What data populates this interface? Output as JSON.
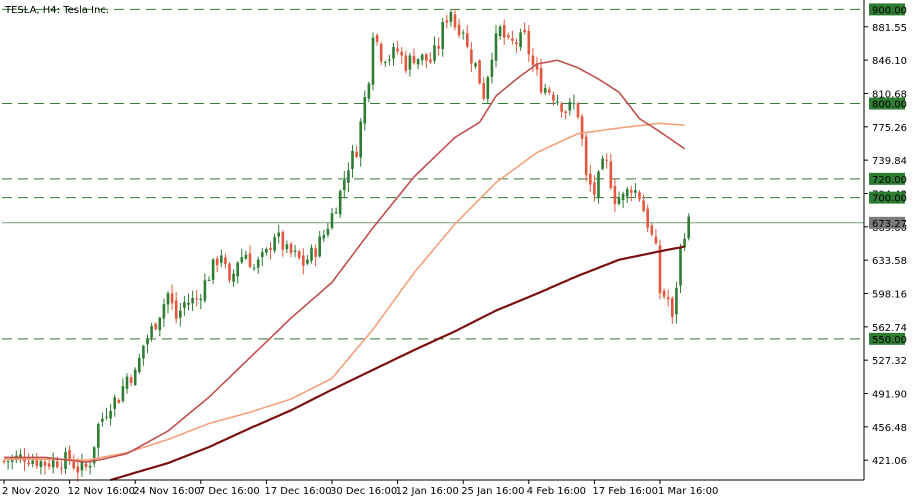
{
  "title": "TESLA, H4:  Tesla Inc.",
  "colors": {
    "background": "#ffffff",
    "bull": "#2e7d32",
    "bear": "#e4573f",
    "level_line": "#2e7d32",
    "sma_fast": "#c0504d",
    "sma_mid": "#f4a07a",
    "sma_slow": "#7b1010",
    "current_price_line": "#7a9a7a",
    "level_tag_bg": "#2e7d32",
    "level_tag_text": "#ffffff",
    "current_tag_bg": "#7a7a7a"
  },
  "chart_data": {
    "type": "candlestick",
    "symbol": "TESLA",
    "timeframe": "H4",
    "ylim": [
      400,
      910
    ],
    "y_ticks": [
      "881.55",
      "846.10",
      "810.68",
      "775.26",
      "739.84",
      "704.42",
      "669.00",
      "633.58",
      "598.16",
      "562.74",
      "527.32",
      "491.90",
      "456.48",
      "421.06"
    ],
    "x_ticks": [
      "2 Nov 2020",
      "12 Nov 16:00",
      "24 Nov 16:00",
      "7 Dec 16:00",
      "17 Dec 16:00",
      "30 Dec 16:00",
      "12 Jan 16:00",
      "25 Jan 16:00",
      "4 Feb 16:00",
      "17 Feb 16:00",
      "1 Mar 16:00"
    ],
    "levels": [
      {
        "value": 900,
        "label": "900.00"
      },
      {
        "value": 800,
        "label": "800.00"
      },
      {
        "value": 720,
        "label": "720.00"
      },
      {
        "value": 700,
        "label": "700.00"
      },
      {
        "value": 550,
        "label": "550.00"
      }
    ],
    "current_price": {
      "value": 673.27,
      "label": "673.27"
    },
    "price_path": [
      [
        0,
        420
      ],
      [
        5,
        425
      ],
      [
        10,
        418
      ],
      [
        14,
        421
      ],
      [
        16,
        422
      ],
      [
        18,
        412
      ],
      [
        20,
        413
      ],
      [
        21,
        420
      ],
      [
        23,
        458
      ],
      [
        26,
        482
      ],
      [
        28,
        488
      ],
      [
        30,
        510
      ],
      [
        32,
        512
      ],
      [
        34,
        543
      ],
      [
        37,
        568
      ],
      [
        40,
        598
      ],
      [
        42,
        572
      ],
      [
        44,
        588
      ],
      [
        47,
        592
      ],
      [
        50,
        618
      ],
      [
        53,
        642
      ],
      [
        55,
        605
      ],
      [
        57,
        634
      ],
      [
        59,
        641
      ],
      [
        61,
        625
      ],
      [
        64,
        640
      ],
      [
        66,
        662
      ],
      [
        69,
        642
      ],
      [
        71,
        638
      ],
      [
        73,
        630
      ],
      [
        76,
        645
      ],
      [
        78,
        661
      ],
      [
        80,
        682
      ],
      [
        82,
        705
      ],
      [
        84,
        735
      ],
      [
        86,
        752
      ],
      [
        88,
        805
      ],
      [
        89,
        830
      ],
      [
        90,
        878
      ],
      [
        92,
        852
      ],
      [
        94,
        850
      ],
      [
        96,
        856
      ],
      [
        98,
        842
      ],
      [
        100,
        850
      ],
      [
        102,
        848
      ],
      [
        104,
        845
      ],
      [
        106,
        862
      ],
      [
        107,
        880
      ],
      [
        108,
        892
      ],
      [
        109,
        900
      ],
      [
        110,
        883
      ],
      [
        112,
        880
      ],
      [
        113,
        858
      ],
      [
        115,
        840
      ],
      [
        117,
        810
      ],
      [
        119,
        855
      ],
      [
        121,
        878
      ],
      [
        123,
        862
      ],
      [
        125,
        865
      ],
      [
        127,
        870
      ],
      [
        129,
        840
      ],
      [
        131,
        820
      ],
      [
        133,
        814
      ],
      [
        135,
        805
      ],
      [
        137,
        793
      ],
      [
        139,
        798
      ],
      [
        140,
        790
      ],
      [
        141,
        760
      ],
      [
        142,
        720
      ],
      [
        144,
        705
      ],
      [
        146,
        733
      ],
      [
        147,
        735
      ],
      [
        149,
        700
      ],
      [
        151,
        700
      ],
      [
        153,
        712
      ],
      [
        155,
        702
      ],
      [
        157,
        673
      ],
      [
        159,
        643
      ],
      [
        160,
        600
      ],
      [
        162,
        592
      ],
      [
        163,
        568
      ],
      [
        164,
        608
      ],
      [
        165,
        645
      ],
      [
        166,
        665
      ],
      [
        167,
        673.27
      ]
    ],
    "sma_fast": [
      [
        0,
        424
      ],
      [
        10,
        424
      ],
      [
        20,
        419
      ],
      [
        24,
        422
      ],
      [
        30,
        428
      ],
      [
        40,
        452
      ],
      [
        50,
        488
      ],
      [
        60,
        530
      ],
      [
        70,
        572
      ],
      [
        80,
        610
      ],
      [
        90,
        668
      ],
      [
        100,
        722
      ],
      [
        110,
        764
      ],
      [
        116,
        780
      ],
      [
        120,
        808
      ],
      [
        125,
        826
      ],
      [
        130,
        842
      ],
      [
        135,
        846
      ],
      [
        140,
        838
      ],
      [
        145,
        826
      ],
      [
        150,
        812
      ],
      [
        155,
        784
      ],
      [
        160,
        770
      ],
      [
        166,
        752
      ]
    ],
    "sma_mid": [
      [
        0,
        422
      ],
      [
        15,
        422
      ],
      [
        20,
        421
      ],
      [
        30,
        429
      ],
      [
        40,
        443
      ],
      [
        50,
        460
      ],
      [
        60,
        472
      ],
      [
        70,
        486
      ],
      [
        80,
        508
      ],
      [
        90,
        560
      ],
      [
        100,
        620
      ],
      [
        110,
        672
      ],
      [
        120,
        716
      ],
      [
        130,
        748
      ],
      [
        140,
        768
      ],
      [
        150,
        774
      ],
      [
        160,
        779
      ],
      [
        166,
        777
      ]
    ],
    "sma_slow": [
      [
        26,
        400
      ],
      [
        40,
        418
      ],
      [
        50,
        435
      ],
      [
        60,
        455
      ],
      [
        70,
        474
      ],
      [
        80,
        496
      ],
      [
        90,
        517
      ],
      [
        100,
        538
      ],
      [
        110,
        558
      ],
      [
        120,
        580
      ],
      [
        130,
        598
      ],
      [
        140,
        617
      ],
      [
        150,
        634
      ],
      [
        160,
        643
      ],
      [
        166,
        648
      ]
    ]
  }
}
